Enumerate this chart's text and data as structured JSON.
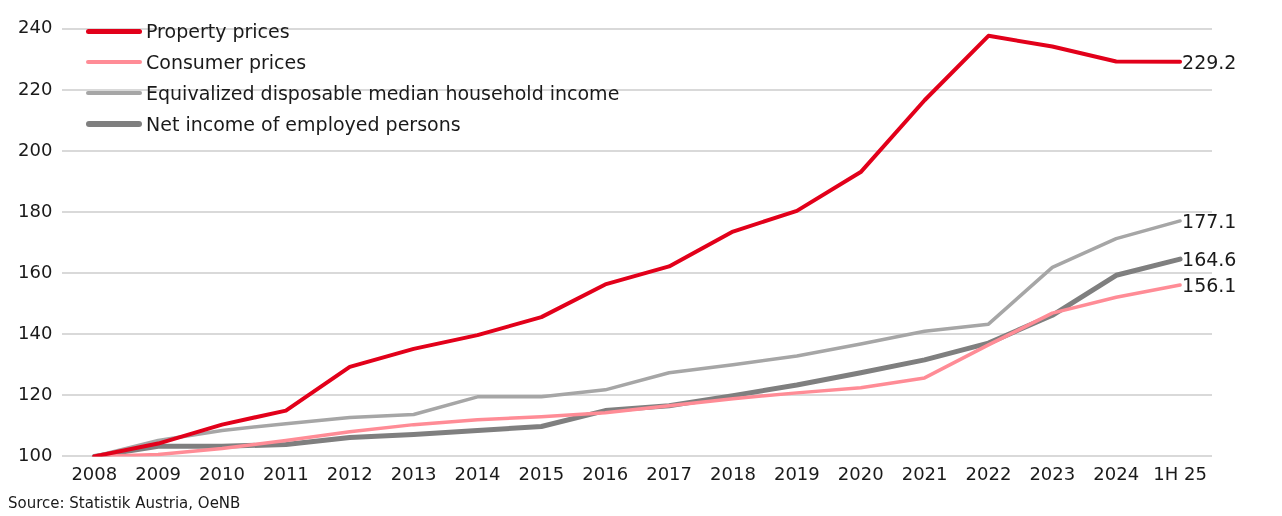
{
  "chart_data": {
    "type": "line",
    "categories": [
      "2008",
      "2009",
      "2010",
      "2011",
      "2012",
      "2013",
      "2014",
      "2015",
      "2016",
      "2017",
      "2018",
      "2019",
      "2020",
      "2021",
      "2022",
      "2023",
      "2024",
      "1H 25"
    ],
    "ylim": [
      100,
      240
    ],
    "yticks": [
      100,
      120,
      140,
      160,
      180,
      200,
      220,
      240
    ],
    "grid": "y",
    "legend": "top left",
    "line_style": "solid",
    "marker": "none",
    "annotations": [
      "Source: Statistik Austria, OeNB"
    ],
    "series": [
      {
        "name": "Property prices",
        "color": "#e2001a",
        "values": [
          100,
          104.2,
          110.4,
          115,
          129.3,
          135.2,
          139.7,
          145.6,
          156.3,
          162.2,
          173.6,
          180.4,
          193.1,
          216.6,
          237.7,
          234.2,
          229.3,
          229.2
        ],
        "value_labels": [
          null,
          null,
          null,
          null,
          null,
          null,
          null,
          null,
          null,
          null,
          null,
          null,
          null,
          null,
          null,
          null,
          null,
          "229.2"
        ]
      },
      {
        "name": "Consumer prices",
        "color": "#ff8c96",
        "values": [
          100,
          100.6,
          102.6,
          105.2,
          108.1,
          110.4,
          112,
          113,
          114.3,
          116.6,
          118.9,
          120.8,
          122.5,
          125.7,
          136.5,
          146.9,
          152.1,
          156.1
        ],
        "value_labels": [
          null,
          null,
          null,
          null,
          null,
          null,
          null,
          null,
          null,
          null,
          null,
          null,
          null,
          null,
          null,
          null,
          null,
          "156.1"
        ]
      },
      {
        "name": "Equivalized disposable median household income",
        "color": "#a6a6a6",
        "values": [
          100,
          105.2,
          108.5,
          110.7,
          112.7,
          113.7,
          119.5,
          119.5,
          121.8,
          127.4,
          130,
          132.9,
          136.8,
          141,
          143.3,
          161.9,
          171.3,
          177.1
        ],
        "value_labels": [
          null,
          null,
          null,
          null,
          null,
          null,
          null,
          null,
          null,
          null,
          null,
          null,
          null,
          null,
          null,
          null,
          null,
          "177.1"
        ]
      },
      {
        "name": "Net income of employed persons",
        "color": "#7f7f7f",
        "values": [
          100,
          103.3,
          103.3,
          103.9,
          106.2,
          107.2,
          108.5,
          109.8,
          115,
          116.6,
          119.9,
          123.4,
          127.4,
          131.6,
          137.1,
          146.2,
          159.3,
          164.6
        ],
        "value_labels": [
          null,
          null,
          null,
          null,
          null,
          null,
          null,
          null,
          null,
          null,
          null,
          null,
          null,
          null,
          null,
          null,
          null,
          "164.6"
        ]
      }
    ]
  }
}
